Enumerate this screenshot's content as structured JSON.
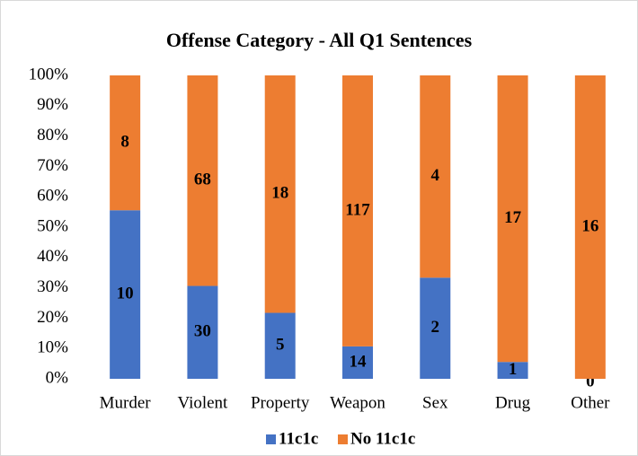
{
  "chart_data": {
    "type": "bar",
    "stacked": true,
    "stack_mode": "percent",
    "title": "Offense Category - All Q1 Sentences",
    "categories": [
      "Murder",
      "Violent",
      "Property",
      "Weapon",
      "Sex",
      "Drug",
      "Other"
    ],
    "series": [
      {
        "name": "11c1c",
        "color": "#4472c4",
        "values": [
          10,
          30,
          5,
          14,
          2,
          1,
          0
        ]
      },
      {
        "name": "No 11c1c",
        "color": "#ed7d31",
        "values": [
          8,
          68,
          18,
          117,
          4,
          17,
          16
        ]
      }
    ],
    "ylim": [
      0,
      100
    ],
    "yticks": [
      {
        "value": 0,
        "label": "0%"
      },
      {
        "value": 10,
        "label": "10%"
      },
      {
        "value": 20,
        "label": "20%"
      },
      {
        "value": 30,
        "label": "30%"
      },
      {
        "value": 40,
        "label": "40%"
      },
      {
        "value": 50,
        "label": "50%"
      },
      {
        "value": 60,
        "label": "60%"
      },
      {
        "value": 70,
        "label": "70%"
      },
      {
        "value": 80,
        "label": "80%"
      },
      {
        "value": 90,
        "label": "90%"
      },
      {
        "value": 100,
        "label": "100%"
      }
    ],
    "grid": false,
    "legend": "bottom"
  }
}
